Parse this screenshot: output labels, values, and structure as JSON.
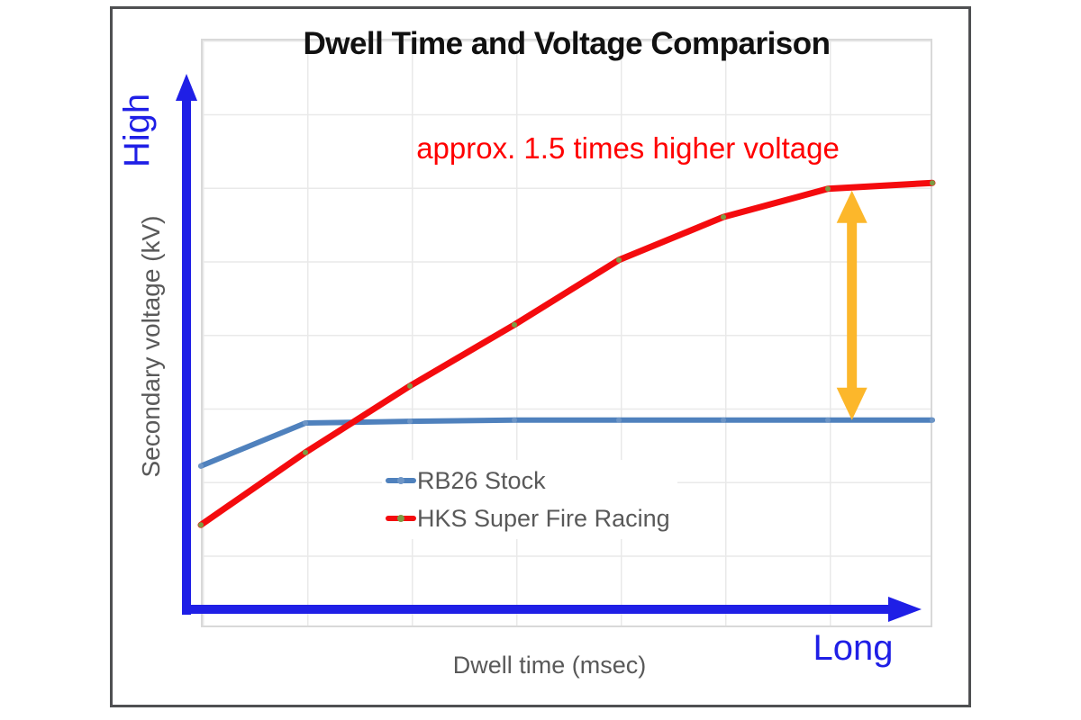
{
  "title": "Dwell Time and Voltage Comparison",
  "annotation": {
    "text": "approx. 1.5 times higher voltage",
    "text_color": "#ff0000"
  },
  "axes": {
    "y_title": "Secondary voltage (kV)",
    "y_end_label": "High",
    "x_title": "Dwell time (msec)",
    "x_end_label": "Long",
    "axis_arrow_color": "#1f1fe6",
    "end_label_color": "#1f1fe6",
    "axis_title_color": "#595959"
  },
  "legend": {
    "text_color": "#595959"
  },
  "chart_data": {
    "type": "line",
    "title": "Dwell Time and Voltage Comparison",
    "xlabel": "Dwell time (msec)",
    "ylabel": "Secondary voltage (kV)",
    "x": [
      1,
      2,
      3,
      4,
      5,
      6,
      7,
      8
    ],
    "x_range": [
      1,
      8
    ],
    "y_range": [
      0,
      100
    ],
    "y_units": "relative (no numeric ticks shown)",
    "grid": true,
    "legend_position": "inside-lower-middle",
    "series": [
      {
        "name": "RB26 Stock",
        "color": "#4f81bd",
        "marker_color": "#6d95c6",
        "stroke_width": 6,
        "values": [
          27.4,
          34.7,
          35.0,
          35.2,
          35.2,
          35.2,
          35.2,
          35.2
        ]
      },
      {
        "name": "HKS Super Fire Racing",
        "color": "#f40b0e",
        "marker_color": "#7d9b43",
        "stroke_width": 7,
        "values": [
          17.4,
          29.7,
          41.0,
          51.4,
          62.4,
          69.7,
          74.5,
          75.5
        ]
      }
    ],
    "annotations": [
      {
        "type": "text",
        "text": "approx. 1.5 times higher voltage",
        "color": "#ff0000"
      },
      {
        "type": "double-arrow",
        "color": "#fcb72b",
        "x": 7.23,
        "from_value": 35.2,
        "to_value": 74.5
      }
    ]
  }
}
